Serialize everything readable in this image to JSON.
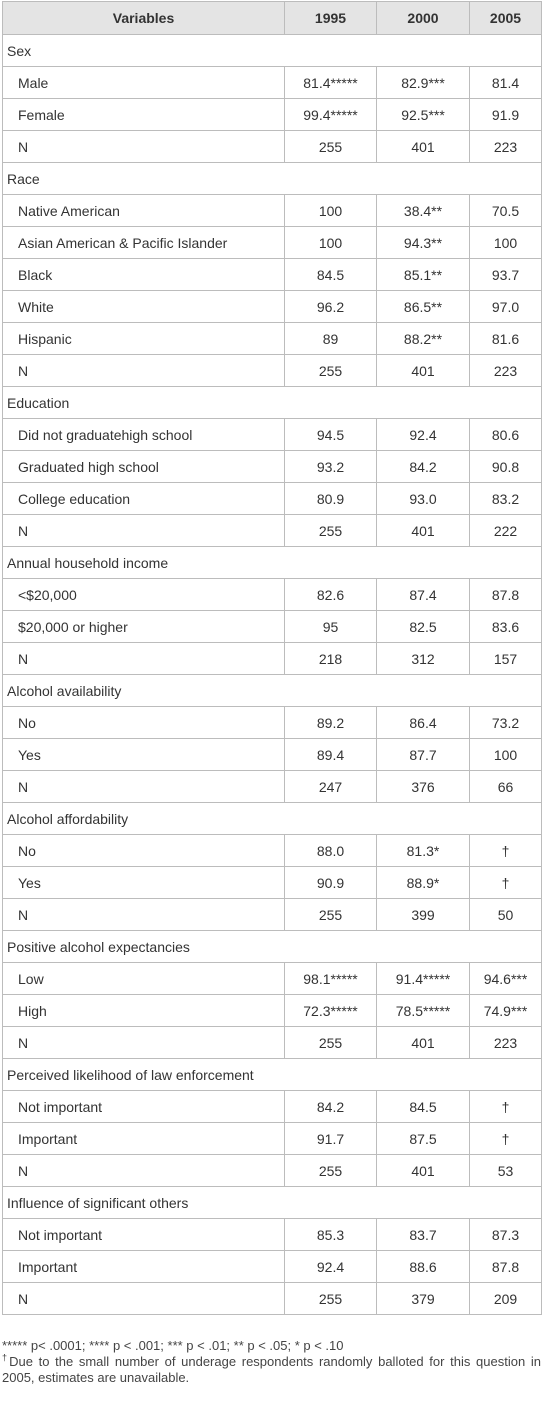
{
  "table": {
    "header": [
      "Variables",
      "1995",
      "2000",
      "2005"
    ],
    "groups": [
      {
        "label": "Sex",
        "rows": [
          [
            "Male",
            "81.4*****",
            "82.9***",
            "81.4"
          ],
          [
            "Female",
            "99.4*****",
            "92.5***",
            "91.9"
          ],
          [
            "N",
            "255",
            "401",
            "223"
          ]
        ]
      },
      {
        "label": "Race",
        "rows": [
          [
            "Native American",
            "100",
            "38.4**",
            "70.5"
          ],
          [
            "Asian American & Pacific Islander",
            "100",
            "94.3**",
            "100"
          ],
          [
            "Black",
            "84.5",
            "85.1**",
            "93.7"
          ],
          [
            "White",
            "96.2",
            "86.5**",
            "97.0"
          ],
          [
            "Hispanic",
            "89",
            "88.2**",
            "81.6"
          ],
          [
            "N",
            "255",
            "401",
            "223"
          ]
        ]
      },
      {
        "label": "Education",
        "rows": [
          [
            "Did not graduatehigh school",
            "94.5",
            "92.4",
            "80.6"
          ],
          [
            "Graduated high school",
            "93.2",
            "84.2",
            "90.8"
          ],
          [
            "College education",
            "80.9",
            "93.0",
            "83.2"
          ],
          [
            "N",
            "255",
            "401",
            "222"
          ]
        ]
      },
      {
        "label": "Annual household income",
        "rows": [
          [
            "<$20,000",
            "82.6",
            "87.4",
            "87.8"
          ],
          [
            "$20,000 or higher",
            "95",
            "82.5",
            "83.6"
          ],
          [
            "N",
            "218",
            "312",
            "157"
          ]
        ]
      },
      {
        "label": "Alcohol availability",
        "rows": [
          [
            "No",
            "89.2",
            "86.4",
            "73.2"
          ],
          [
            "Yes",
            "89.4",
            "87.7",
            "100"
          ],
          [
            "N",
            "247",
            "376",
            "66"
          ]
        ]
      },
      {
        "label": "Alcohol affordability",
        "rows": [
          [
            "No",
            "88.0",
            "81.3*",
            "†"
          ],
          [
            "Yes",
            "90.9",
            "88.9*",
            "†"
          ],
          [
            "N",
            "255",
            "399",
            "50"
          ]
        ]
      },
      {
        "label": "Positive alcohol expectancies",
        "rows": [
          [
            "Low",
            "98.1*****",
            "91.4*****",
            "94.6***"
          ],
          [
            "High",
            "72.3*****",
            "78.5*****",
            "74.9***"
          ],
          [
            "N",
            "255",
            "401",
            "223"
          ]
        ]
      },
      {
        "label": "Perceived likelihood of law enforcement",
        "rows": [
          [
            "Not important",
            "84.2",
            "84.5",
            "†"
          ],
          [
            "Important",
            "91.7",
            "87.5",
            "†"
          ],
          [
            "N",
            "255",
            "401",
            "53"
          ]
        ]
      },
      {
        "label": "Influence of significant others",
        "rows": [
          [
            "Not important",
            "85.3",
            "83.7",
            "87.3"
          ],
          [
            "Important",
            "92.4",
            "88.6",
            "87.8"
          ],
          [
            "N",
            "255",
            "379",
            "209"
          ]
        ]
      }
    ]
  },
  "footnotes": [
    {
      "text": "***** p< .0001; **** p < .001; *** p < .01; ** p < .05; * p < .10"
    },
    {
      "mark": "†",
      "text": "Due to the small number of underage respondents randomly balloted for this question in 2005, estimates are unavailable."
    }
  ]
}
